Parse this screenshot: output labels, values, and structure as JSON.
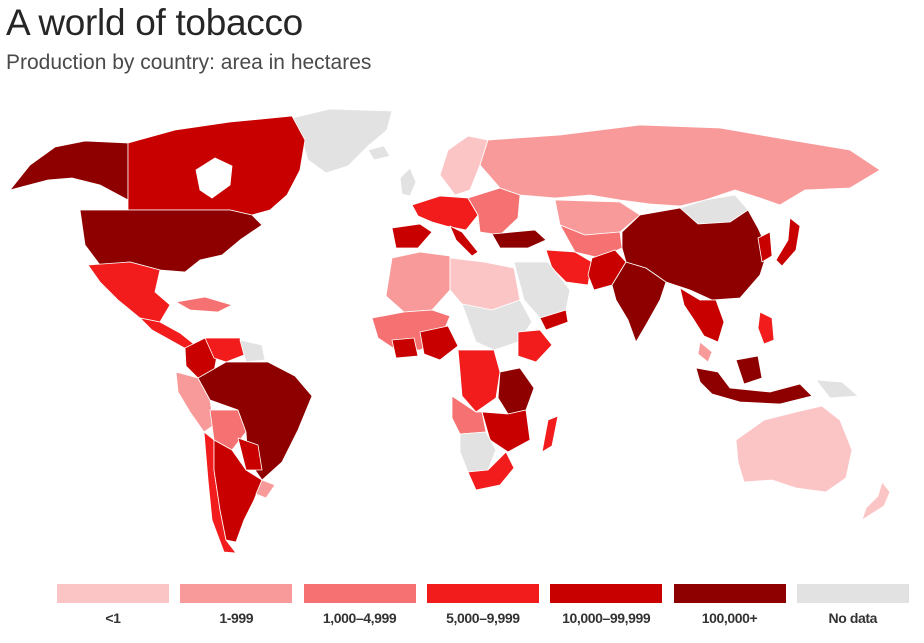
{
  "header": {
    "title": "A world of tobacco",
    "subtitle": "Production by country: area in hectares"
  },
  "legend": {
    "items": [
      {
        "label": "<1",
        "color": "#fcc5c5"
      },
      {
        "label": "1-999",
        "color": "#f99a9a"
      },
      {
        "label": "1,000–4,999",
        "color": "#f67272"
      },
      {
        "label": "5,000–9,999",
        "color": "#f21c1c"
      },
      {
        "label": "10,000–99,999",
        "color": "#c90000"
      },
      {
        "label": "100,000+",
        "color": "#8e0000"
      },
      {
        "label": "No data",
        "color": "#e2e2e2"
      }
    ]
  },
  "map": {
    "regions": [
      {
        "name": "Alaska",
        "category": "100,000+"
      },
      {
        "name": "Canada",
        "category": "10,000–99,999"
      },
      {
        "name": "Greenland",
        "category": "No data"
      },
      {
        "name": "United States",
        "category": "100,000+"
      },
      {
        "name": "Mexico",
        "category": "5,000–9,999"
      },
      {
        "name": "Central America",
        "category": "5,000–9,999"
      },
      {
        "name": "Caribbean",
        "category": "1,000–4,999"
      },
      {
        "name": "Colombia",
        "category": "10,000–99,999"
      },
      {
        "name": "Venezuela",
        "category": "5,000–9,999"
      },
      {
        "name": "Guianas",
        "category": "No data"
      },
      {
        "name": "Peru",
        "category": "1-999"
      },
      {
        "name": "Bolivia",
        "category": "1,000–4,999"
      },
      {
        "name": "Brazil",
        "category": "100,000+"
      },
      {
        "name": "Paraguay",
        "category": "10,000–99,999"
      },
      {
        "name": "Chile",
        "category": "5,000–9,999"
      },
      {
        "name": "Argentina",
        "category": "10,000–99,999"
      },
      {
        "name": "Uruguay",
        "category": "1-999"
      },
      {
        "name": "Western Europe",
        "category": "5,000–9,999"
      },
      {
        "name": "Spain",
        "category": "10,000–99,999"
      },
      {
        "name": "Scandinavia",
        "category": "<1"
      },
      {
        "name": "Eastern Europe",
        "category": "1,000–4,999"
      },
      {
        "name": "Russia",
        "category": "1-999"
      },
      {
        "name": "Turkey",
        "category": "100,000+"
      },
      {
        "name": "Kazakhstan",
        "category": "1-999"
      },
      {
        "name": "Mongolia",
        "category": "No data"
      },
      {
        "name": "Iran",
        "category": "5,000–9,999"
      },
      {
        "name": "Pakistan",
        "category": "10,000–99,999"
      },
      {
        "name": "Arabia",
        "category": "No data"
      },
      {
        "name": "Yemen",
        "category": "10,000–99,999"
      },
      {
        "name": "India",
        "category": "100,000+"
      },
      {
        "name": "China",
        "category": "100,000+"
      },
      {
        "name": "Korea",
        "category": "10,000–99,999"
      },
      {
        "name": "Japan",
        "category": "10,000–99,999"
      },
      {
        "name": "Southeast Asia",
        "category": "10,000–99,999"
      },
      {
        "name": "Philippines",
        "category": "5,000–9,999"
      },
      {
        "name": "Indonesia",
        "category": "100,000+"
      },
      {
        "name": "Papua New Guinea",
        "category": "No data"
      },
      {
        "name": "Australia",
        "category": "<1"
      },
      {
        "name": "New Zealand",
        "category": "<1"
      },
      {
        "name": "North Africa",
        "category": "1-999"
      },
      {
        "name": "Libya-Egypt region",
        "category": "<1"
      },
      {
        "name": "Sahara",
        "category": "No data"
      },
      {
        "name": "West Africa",
        "category": "1,000–4,999"
      },
      {
        "name": "Nigeria",
        "category": "10,000–99,999"
      },
      {
        "name": "Ethiopia",
        "category": "5,000–9,999"
      },
      {
        "name": "Central Africa",
        "category": "5,000–9,999"
      },
      {
        "name": "Tanzania",
        "category": "100,000+"
      },
      {
        "name": "Zambia-Malawi",
        "category": "10,000–99,999"
      },
      {
        "name": "Angola",
        "category": "1,000–4,999"
      },
      {
        "name": "Namibia-Botswana",
        "category": "No data"
      },
      {
        "name": "South Africa",
        "category": "5,000–9,999"
      },
      {
        "name": "Madagascar",
        "category": "5,000–9,999"
      }
    ]
  }
}
